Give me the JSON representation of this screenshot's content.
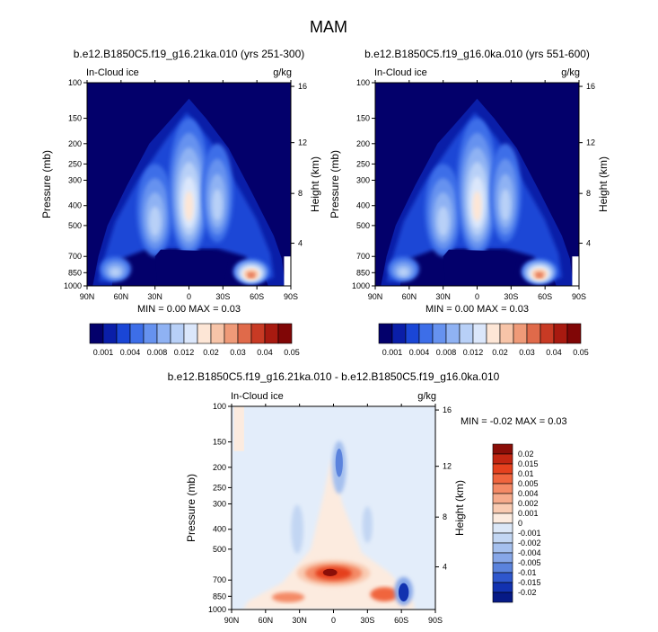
{
  "figure": {
    "title": "MAM",
    "panels": [
      {
        "title": "b.e12.B1850C5.f19_g16.21ka.010 (yrs 251-300)",
        "variable": "In-Cloud ice",
        "units": "g/kg",
        "left_axis_label": "Pressure (mb)",
        "right_axis_label": "Height (km)",
        "stats": {
          "min_label": "MIN =",
          "min": "0.00",
          "max_label": "MAX =",
          "max": "0.03"
        }
      },
      {
        "title": "b.e12.B1850C5.f19_g16.0ka.010 (yrs 551-600)",
        "variable": "In-Cloud ice",
        "units": "g/kg",
        "left_axis_label": "Pressure (mb)",
        "right_axis_label": "Height (km)",
        "stats": {
          "min_label": "MIN =",
          "min": "0.00",
          "max_label": "MAX =",
          "max": "0.03"
        }
      },
      {
        "title": "b.e12.B1850C5.f19_g16.21ka.010 - b.e12.B1850C5.f19_g16.0ka.010",
        "variable": "In-Cloud ice",
        "units": "g/kg",
        "left_axis_label": "Pressure (mb)",
        "right_axis_label": "Height (km)",
        "stats": {
          "min_label": "MIN =",
          "min": "-0.02",
          "max_label": "MAX =",
          "max": "0.03"
        }
      }
    ],
    "x_ticks": [
      "90N",
      "60N",
      "30N",
      "0",
      "30S",
      "60S",
      "90S"
    ],
    "y_ticks_pressure": [
      "100",
      "150",
      "200",
      "250",
      "300",
      "400",
      "500",
      "700",
      "850",
      "1000"
    ],
    "y_ticks_height": [
      "16",
      "12",
      "8",
      "4"
    ],
    "colorbar_levels": [
      "0.001",
      "0.004",
      "0.008",
      "0.012",
      "0.02",
      "0.03",
      "0.04",
      "0.05"
    ],
    "colorbar_colors": [
      "#03006b",
      "#0a1ea8",
      "#1a46d6",
      "#3d6ee8",
      "#6692ef",
      "#8fb2f3",
      "#b8d0f7",
      "#dbe7fb",
      "#fde6d6",
      "#f7c4a8",
      "#ef9a78",
      "#e06a4a",
      "#c83a24",
      "#a81a10",
      "#800606"
    ],
    "diff_colorbar_levels": [
      "0.02",
      "0.015",
      "0.01",
      "0.005",
      "0.004",
      "0.002",
      "0.001",
      "0",
      "-0.001",
      "-0.002",
      "-0.004",
      "-0.005",
      "-0.01",
      "-0.015",
      "-0.02"
    ],
    "diff_colorbar_colors": [
      "#8a0e08",
      "#c22612",
      "#e5411e",
      "#f0653e",
      "#f48a66",
      "#f6ab8c",
      "#f9cbb2",
      "#fcebdf",
      "#dbe7f7",
      "#c2d6f3",
      "#a5c0ee",
      "#87a7e8",
      "#5b83dd",
      "#2f57cd",
      "#1232b0",
      "#061a86"
    ]
  },
  "chart_data": [
    {
      "type": "heatmap",
      "title": "b.e12.B1850C5.f19_g16.21ka.010 (yrs 251-300)",
      "xlabel": "",
      "ylabel": "Pressure (mb)",
      "y2label": "Height (km)",
      "x_ticks": [
        "90N",
        "60N",
        "30N",
        "0",
        "30S",
        "60S",
        "90S"
      ],
      "y_ticks": [
        100,
        150,
        200,
        250,
        300,
        400,
        500,
        700,
        850,
        1000
      ],
      "y2_ticks": [
        16,
        12,
        8,
        4
      ],
      "min": 0.0,
      "max": 0.03,
      "units": "g/kg",
      "maxima": [
        {
          "lat": 0,
          "p": 500,
          "value": 0.02
        },
        {
          "lat": -55,
          "p": 850,
          "value": 0.03
        },
        {
          "lat": 30,
          "p": 400,
          "value": 0.012
        }
      ]
    },
    {
      "type": "heatmap",
      "title": "b.e12.B1850C5.f19_g16.0ka.010 (yrs 551-600)",
      "xlabel": "",
      "ylabel": "Pressure (mb)",
      "y2label": "Height (km)",
      "x_ticks": [
        "90N",
        "60N",
        "30N",
        "0",
        "30S",
        "60S",
        "90S"
      ],
      "y_ticks": [
        100,
        150,
        200,
        250,
        300,
        400,
        500,
        700,
        850,
        1000
      ],
      "y2_ticks": [
        16,
        12,
        8,
        4
      ],
      "min": 0.0,
      "max": 0.03,
      "units": "g/kg",
      "maxima": [
        {
          "lat": 0,
          "p": 500,
          "value": 0.02
        },
        {
          "lat": -55,
          "p": 850,
          "value": 0.03
        },
        {
          "lat": 30,
          "p": 400,
          "value": 0.012
        }
      ]
    },
    {
      "type": "heatmap",
      "title": "b.e12.B1850C5.f19_g16.21ka.010 - b.e12.B1850C5.f19_g16.0ka.010",
      "xlabel": "",
      "ylabel": "Pressure (mb)",
      "y2label": "Height (km)",
      "x_ticks": [
        "90N",
        "60N",
        "30N",
        "0",
        "30S",
        "60S",
        "90S"
      ],
      "y_ticks": [
        100,
        150,
        200,
        250,
        300,
        400,
        500,
        700,
        850,
        1000
      ],
      "y2_ticks": [
        16,
        12,
        8,
        4
      ],
      "min": -0.02,
      "max": 0.03,
      "units": "g/kg",
      "maxima": [
        {
          "lat": 0,
          "p": 650,
          "value": 0.02
        },
        {
          "lat": -50,
          "p": 850,
          "value": 0.01
        },
        {
          "lat": 40,
          "p": 850,
          "value": 0.01
        }
      ],
      "minima": [
        {
          "lat": -62,
          "p": 800,
          "value": -0.02
        },
        {
          "lat": -5,
          "p": 200,
          "value": -0.005
        }
      ]
    }
  ]
}
